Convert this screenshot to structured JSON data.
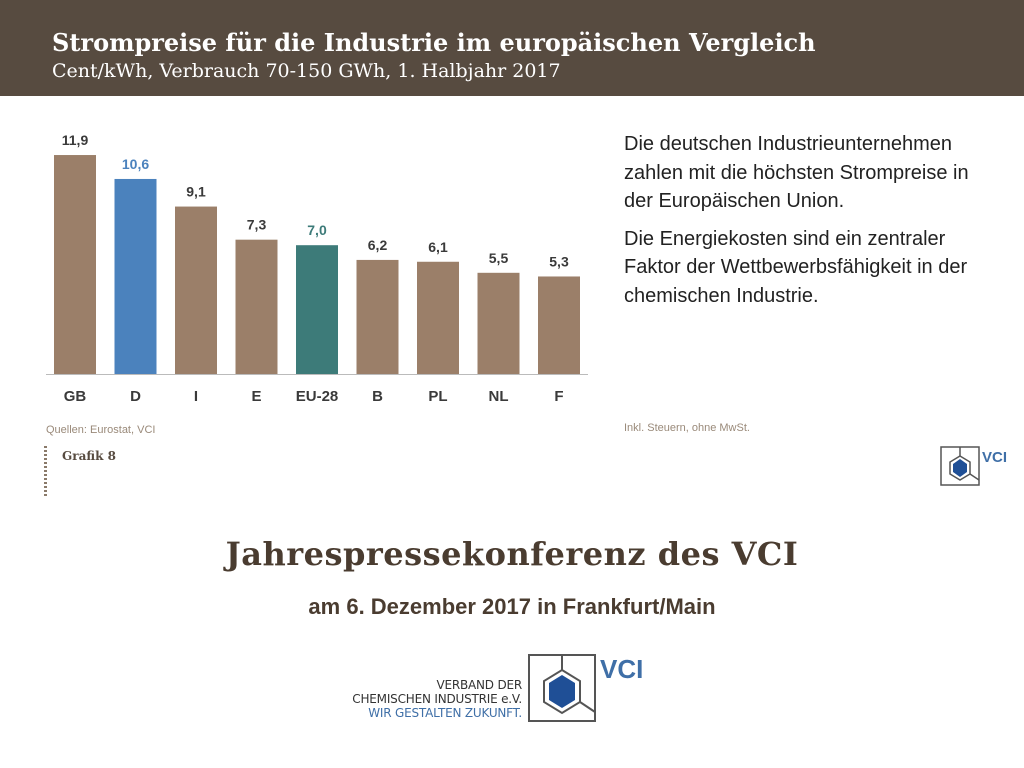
{
  "header": {
    "title": "Strompreise für die Industrie im europäischen Vergleich",
    "subtitle": "Cent/kWh, Verbrauch 70-150 GWh, 1. Halbjahr 2017"
  },
  "colors": {
    "default_bar": "#9b7f69",
    "germany_bar": "#4b82bd",
    "eu_bar": "#3d7b79"
  },
  "chart_data": {
    "type": "bar",
    "categories": [
      "GB",
      "D",
      "I",
      "E",
      "EU-28",
      "B",
      "PL",
      "NL",
      "F"
    ],
    "values": [
      11.9,
      10.6,
      9.1,
      7.3,
      7.0,
      6.2,
      6.1,
      5.5,
      5.3
    ],
    "value_labels": [
      "11,9",
      "10,6",
      "9,1",
      "7,3",
      "7,0",
      "6,2",
      "6,1",
      "5,5",
      "5,3"
    ],
    "highlight": {
      "D": "#4b82bd",
      "EU-28": "#3d7b79"
    },
    "ylim": [
      0,
      12.5
    ],
    "grid": false
  },
  "source": "Quellen: Eurostat, VCI",
  "grafik_label": "Grafik 8",
  "text": {
    "p1": "Die deutschen Industrieunternehmen zahlen mit die höchsten Strompreise in der Europäischen Union.",
    "p2": "Die Energiekosten sind ein zentraler Faktor der Wettbewerbsfähigkeit in der chemischen Industrie."
  },
  "note": "Inkl. Steuern, ohne MwSt.",
  "vci_logo": "VCI",
  "conference": {
    "title": "Jahrespressekonferenz des VCI",
    "subtitle": "am 6. Dezember 2017 in Frankfurt/Main"
  },
  "logo_text": {
    "line1": "VERBAND DER",
    "line2": "CHEMISCHEN INDUSTRIE e.V.",
    "tagline": "WIR GESTALTEN ZUKUNFT."
  }
}
